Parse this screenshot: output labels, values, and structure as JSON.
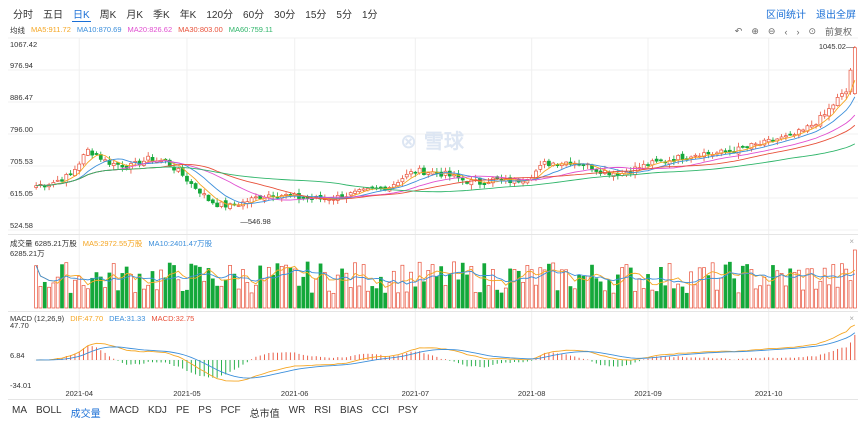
{
  "period_tabs": [
    "分时",
    "五日",
    "日K",
    "周K",
    "月K",
    "季K",
    "年K",
    "120分",
    "60分",
    "30分",
    "15分",
    "5分",
    "1分"
  ],
  "active_tab": "日K",
  "top_links": {
    "range_stats": "区间统计",
    "exit_full": "退出全屏"
  },
  "toolbar": {
    "rights": "前复权"
  },
  "price_legend": {
    "label": "均线",
    "items": [
      {
        "text": "MA5:911.72",
        "color": "#f5a623"
      },
      {
        "text": "MA10:870.69",
        "color": "#3c8fdb"
      },
      {
        "text": "MA20:826.62",
        "color": "#e04fd0"
      },
      {
        "text": "MA30:803.00",
        "color": "#e8513a"
      },
      {
        "text": "MA60:759.11",
        "color": "#2fb56a"
      }
    ]
  },
  "volume_legend": {
    "label": "成交量 6285.21万股",
    "items": [
      {
        "text": "MA5:2972.55万股",
        "color": "#f5a623"
      },
      {
        "text": "MA10:2401.47万股",
        "color": "#3c8fdb"
      }
    ]
  },
  "macd_legend": {
    "label": "MACD (12,26,9)",
    "items": [
      {
        "text": "DIF:47.70",
        "color": "#f5a623"
      },
      {
        "text": "DEA:31.33",
        "color": "#3c8fdb"
      },
      {
        "text": "MACD:32.75",
        "color": "#e8513a"
      }
    ]
  },
  "watermark": "雪球",
  "bottom_tabs": [
    "MA",
    "BOLL",
    "成交量",
    "MACD",
    "KDJ",
    "PE",
    "PS",
    "PCF",
    "总市值",
    "WR",
    "RSI",
    "BIAS",
    "CCI",
    "PSY"
  ],
  "bottom_active": "成交量",
  "chart_data": {
    "type": "candlestick",
    "price_axis": {
      "ticks": [
        "1067.42",
        "976.94",
        "886.47",
        "796.00",
        "705.53",
        "615.05",
        "524.58"
      ],
      "range": [
        524.58,
        1067.42
      ]
    },
    "volume_axis": {
      "top_label": "6285.21万"
    },
    "macd_axis": {
      "ticks": [
        "47.70",
        "6.84",
        "-34.01"
      ],
      "range": [
        -34.01,
        47.7
      ]
    },
    "x_ticks": [
      "2021-04",
      "2021-05",
      "2021-06",
      "2021-07",
      "2021-08",
      "2021-09",
      "2021-10"
    ],
    "x_tick_index": [
      10,
      35,
      60,
      88,
      115,
      142,
      170
    ],
    "annotations": {
      "low": "546.98",
      "high": "1045.02"
    },
    "close_path": [
      [
        0,
        650
      ],
      [
        4,
        660
      ],
      [
        8,
        680
      ],
      [
        12,
        750
      ],
      [
        14,
        738
      ],
      [
        16,
        720
      ],
      [
        18,
        712
      ],
      [
        22,
        705
      ],
      [
        26,
        725
      ],
      [
        30,
        718
      ],
      [
        32,
        700
      ],
      [
        34,
        680
      ],
      [
        36,
        655
      ],
      [
        38,
        635
      ],
      [
        40,
        610
      ],
      [
        42,
        598
      ],
      [
        45,
        592
      ],
      [
        48,
        602
      ],
      [
        52,
        620
      ],
      [
        55,
        627
      ],
      [
        58,
        622
      ],
      [
        62,
        615
      ],
      [
        66,
        613
      ],
      [
        70,
        618
      ],
      [
        74,
        628
      ],
      [
        78,
        638
      ],
      [
        82,
        648
      ],
      [
        85,
        672
      ],
      [
        88,
        692
      ],
      [
        92,
        688
      ],
      [
        95,
        682
      ],
      [
        98,
        670
      ],
      [
        100,
        663
      ],
      [
        103,
        658
      ],
      [
        106,
        668
      ],
      [
        109,
        662
      ],
      [
        112,
        666
      ],
      [
        115,
        680
      ],
      [
        118,
        712
      ],
      [
        121,
        715
      ],
      [
        124,
        718
      ],
      [
        127,
        712
      ],
      [
        130,
        696
      ],
      [
        133,
        688
      ],
      [
        136,
        685
      ],
      [
        139,
        698
      ],
      [
        142,
        710
      ],
      [
        145,
        718
      ],
      [
        148,
        726
      ],
      [
        151,
        734
      ],
      [
        154,
        742
      ],
      [
        157,
        740
      ],
      [
        160,
        745
      ],
      [
        163,
        752
      ],
      [
        166,
        762
      ],
      [
        169,
        770
      ],
      [
        172,
        782
      ],
      [
        175,
        788
      ],
      [
        178,
        805
      ],
      [
        181,
        830
      ],
      [
        183,
        850
      ],
      [
        184,
        865
      ],
      [
        185,
        880
      ],
      [
        186,
        895
      ],
      [
        188,
        915
      ],
      [
        190,
        1040
      ]
    ],
    "bar_count": 191,
    "last_volume": "6285.21万股"
  }
}
